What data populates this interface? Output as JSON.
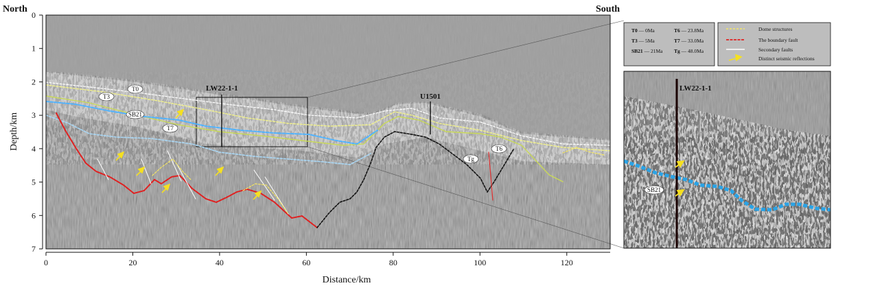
{
  "headers": {
    "north": "North",
    "south": "South"
  },
  "axes": {
    "xlabel": "Distance/km",
    "ylabel": "Depth/km",
    "xticks": [
      "0",
      "20",
      "40",
      "60",
      "80",
      "100",
      "120"
    ],
    "yticks": [
      "0",
      "1",
      "2",
      "3",
      "4",
      "5",
      "6",
      "7"
    ]
  },
  "horizons": [
    {
      "id": "T0",
      "label": "T0",
      "color": "#ffffff"
    },
    {
      "id": "T3",
      "label": "T3",
      "color": "#f2f28a"
    },
    {
      "id": "SB21",
      "label": "SB21",
      "color": "#66c2ff"
    },
    {
      "id": "T7",
      "label": "T7",
      "color": "#a9d7f5"
    },
    {
      "id": "T6",
      "label": "T6",
      "color": "#c9d957"
    },
    {
      "id": "Tg",
      "label": "Tg",
      "color": "#ffffff"
    }
  ],
  "wells": [
    {
      "name": "LW22-1-1"
    },
    {
      "name": "U1501"
    }
  ],
  "inset_well": "LW22-1-1",
  "inset_label": "SB21",
  "legend_ages": [
    {
      "name": "T0",
      "age": "0Ma"
    },
    {
      "name": "T6",
      "age": "23.8Ma"
    },
    {
      "name": "T3",
      "age": "5Ma"
    },
    {
      "name": "T7",
      "age": "33.0Ma"
    },
    {
      "name": "SB21",
      "age": "21Ma"
    },
    {
      "name": "Tg",
      "age": "48.0Ma"
    }
  ],
  "legend_symbols": [
    {
      "label": "Dome structures",
      "color": "#f5e663"
    },
    {
      "label": "The boundary fault",
      "color": "#e02020"
    },
    {
      "label": "Secondary faults",
      "color": "#ffffff"
    },
    {
      "label": "Distinct seismic reflections",
      "color": "#f5e020"
    }
  ]
}
